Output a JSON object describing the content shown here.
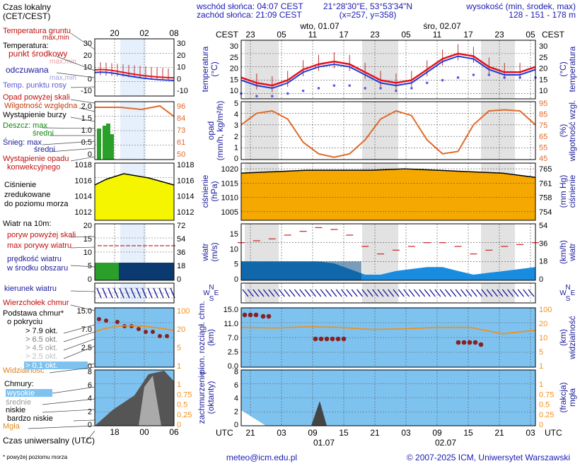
{
  "header": {
    "sunrise": "wschód słońca: 04:07 CEST",
    "sunset": "zachód słońca: 21:09 CEST",
    "coords": "21°28'30\"E, 53°53'34\"N",
    "grid": "(x=257, y=358)",
    "height_label": "wysokość (min, środek, max)",
    "height_values": "128 - 151 - 178 m"
  },
  "footer": {
    "email": "meteo@icm.edu.pl",
    "copyright": "© 2007-2025 ICM, Uniwersytet Warszawski",
    "note": "* powyżej poziomu morza"
  },
  "legend": {
    "tz": "Czas lokalny",
    "tz2": "(CET/CEST)",
    "ground_temp": "Temperatura gruntu",
    "maxmin": "max,min",
    "temperature": "Temperatura:",
    "mid_point": "punkt środkowy",
    "max_min": "max,min",
    "perceived": "odczuwana",
    "max_min2": "max,min",
    "dew": "Temp. punktu rosy",
    "precip_above": "Opad powyżej skali",
    "rh": "Wilgotność względna",
    "storm": "Wystąpienie burzy",
    "rain_max": "Deszcz: max",
    "rain_mid": "średni",
    "snow_max": "Śnieg:   max",
    "snow_mid": "średni",
    "conv": "Wystąpienie opadu",
    "conv2": "konwekcyjnego",
    "pressure1": "Ciśnienie",
    "pressure2": "zredukowane",
    "pressure3": "do poziomu morza",
    "wind_title": "Wiatr na 10m:",
    "gust_above": "poryw powyżej skali",
    "gust_max": "max porywy wiatru",
    "wind_speed1": "prędkość wiatru",
    "wind_speed2": "w środku obszaru",
    "wind_dir": "kierunek wiatru",
    "cloud_top": "Wierzchołek chmur",
    "cloud_base1": "Podstawa chmur*",
    "cloud_base2": "o pokryciu",
    "okt79": "> 7.9 okt.",
    "okt65": "> 6.5 okt.",
    "okt45": "> 4.5 okt.",
    "okt25": "> 2.5 okt.",
    "okt01": "> 0.1 okt.",
    "visibility": "Widzialność",
    "clouds": "Chmury:",
    "high": "wysokie",
    "mid": "średnie",
    "low": "niskie",
    "vlow": "bardzo niskie",
    "fog": "Mgła",
    "utc": "Czas uniwersalny (UTC)"
  },
  "main": {
    "cest": "CEST",
    "utc": "UTC",
    "day1": "wto, 01.07",
    "day2": "śro, 02.07",
    "date1": "01.07",
    "date2": "02.07",
    "top_hours": [
      "23",
      "05",
      "11",
      "17",
      "23",
      "05",
      "11",
      "17",
      "23",
      "05"
    ],
    "bottom_hours": [
      "21",
      "03",
      "09",
      "15",
      "21",
      "03",
      "09",
      "15",
      "21",
      "03"
    ],
    "left_hours_top": [
      "20",
      "02",
      "08"
    ],
    "left_hours_bottom": [
      "18",
      "00",
      "06"
    ],
    "panel_labels": {
      "temp": [
        "temperatura",
        "(°C)"
      ],
      "precip": [
        "opad",
        "(mm/h, kg/m²/h)"
      ],
      "pressure": [
        "ciśnienie",
        "(hPa)"
      ],
      "wind": [
        "wiatr",
        "(m/s)"
      ],
      "cloudbase": [
        "pion. rozciągł. chm.",
        "(km)"
      ],
      "cover": [
        "zachmurzenie",
        "(oktanty)"
      ],
      "temp_r": [
        "(°C)",
        "temperatura"
      ],
      "rh_r": [
        "(%)",
        "wilgotność wzgl."
      ],
      "pres_r": [
        "(mm Hg)",
        "ciśnienie"
      ],
      "wind_r": [
        "(km/h)",
        "wiatr"
      ],
      "vis_r": [
        "(km)",
        "widzialność"
      ],
      "fog_r": [
        "(frakcja)",
        "mgła"
      ]
    },
    "compass_n": "N",
    "compass_w": "W",
    "compass_e": "E",
    "compass_s": "S"
  },
  "axes": {
    "temp_left": [
      "30",
      "25",
      "20",
      "15",
      "10"
    ],
    "temp_right": [
      "30",
      "25",
      "20",
      "15",
      "10"
    ],
    "precip_left": [
      "5",
      "4",
      "3",
      "2",
      "1",
      "0"
    ],
    "rh_right": [
      "95",
      "85",
      "75",
      "65",
      "55",
      "45"
    ],
    "pres_left": [
      "1020",
      "1015",
      "1010",
      "1005"
    ],
    "pres_right": [
      "765",
      "761",
      "758",
      "754"
    ],
    "wind_left": [
      "15",
      "10",
      "5",
      "0"
    ],
    "wind_right": [
      "54",
      "36",
      "18",
      "0"
    ],
    "cb_left": [
      "15.0",
      "11.0",
      "7.0",
      "2.5",
      "0.0"
    ],
    "vis_right": [
      "100",
      "20",
      "10",
      "5",
      "1"
    ],
    "cover_left": [
      "8",
      "6",
      "4",
      "2",
      "0"
    ],
    "fog_right": [
      "1",
      "0.75",
      "0.5",
      "0.25",
      "0"
    ],
    "sm_temp_left": [
      "30",
      "20",
      "10",
      "0",
      "-10"
    ],
    "sm_temp_right": [
      "30",
      "20",
      "10",
      "0",
      "-10"
    ],
    "sm_prec_left": [
      "2.0",
      "1.5",
      "1.0",
      "0.5",
      "0"
    ],
    "sm_rh_right": [
      "96",
      "84",
      "73",
      "61",
      "50"
    ],
    "sm_pres_left": [
      "1018",
      "1016",
      "1014",
      "1012"
    ],
    "sm_pres_right": [
      "1018",
      "1016",
      "1014",
      "1012"
    ],
    "sm_wind_left": [
      "20",
      "15",
      "10",
      "5",
      "0"
    ],
    "sm_wind_right": [
      "72",
      "54",
      "36",
      "18",
      "0"
    ],
    "sm_cb_left": [
      "15.0",
      "7.0",
      "2.5",
      "0.0"
    ],
    "sm_vis_right": [
      "100",
      "20",
      "5",
      "1"
    ],
    "sm_cov_left": [
      "8",
      "6",
      "4",
      "2",
      "0"
    ],
    "sm_fog_right": [
      "1",
      "0.75",
      "0.5",
      "0.25",
      "0"
    ]
  },
  "colors": {
    "temp": "#e8101a",
    "perceived": "#1a3bd6",
    "dew": "#5a5ae0",
    "rh": "#e06a2a",
    "pressure_fill": "#f5a800",
    "pressure_fill_light": "#ffd000",
    "wind_fill": "#1a8ce0",
    "gust": "#cc2222",
    "vis": "#f09020",
    "sky": "#7ec3f0",
    "night": "#e2e2e2"
  },
  "chart_data": [
    {
      "type": "line",
      "title": "temperatura (°C)",
      "x": [
        "23",
        "02",
        "05",
        "08",
        "11",
        "14",
        "17",
        "20",
        "23",
        "02",
        "05",
        "08",
        "11",
        "14",
        "17",
        "20",
        "23",
        "02",
        "05",
        "08"
      ],
      "series": [
        {
          "name": "temperatura punkt środkowy",
          "values": [
            16,
            14,
            13,
            15,
            19,
            21,
            22,
            21,
            18,
            15,
            14,
            15,
            19,
            23,
            25,
            24,
            20,
            18,
            18,
            20
          ]
        },
        {
          "name": "odczuwana",
          "values": [
            15,
            13,
            12,
            14,
            18,
            20,
            21,
            20,
            17,
            14,
            13,
            14,
            18,
            22,
            24,
            23,
            19,
            17,
            17,
            19
          ]
        },
        {
          "name": "temp. punktu rosy",
          "values": [
            10,
            9,
            9,
            10,
            11,
            12,
            13,
            13,
            12,
            12,
            11,
            12,
            14,
            15,
            16,
            17,
            17,
            16,
            16,
            16
          ]
        }
      ],
      "ylim": [
        8,
        30
      ]
    },
    {
      "type": "line",
      "title": "wilgotność względna (%)",
      "x": [
        "23",
        "02",
        "05",
        "08",
        "11",
        "14",
        "17",
        "20",
        "23",
        "02",
        "05",
        "08",
        "11",
        "14",
        "17",
        "20",
        "23",
        "02",
        "05",
        "08"
      ],
      "series": [
        {
          "name": "wilgotność względna",
          "values": [
            75,
            85,
            87,
            80,
            60,
            50,
            47,
            50,
            62,
            80,
            87,
            83,
            62,
            50,
            52,
            75,
            87,
            88,
            87,
            75
          ]
        }
      ],
      "ylim": [
        45,
        95
      ]
    },
    {
      "type": "area",
      "title": "ciśnienie (hPa)",
      "x": [
        "23",
        "05",
        "11",
        "17",
        "23",
        "05",
        "11",
        "17",
        "23",
        "05"
      ],
      "series": [
        {
          "name": "ciśnienie",
          "values": [
            1018.5,
            1019,
            1019.5,
            1019.5,
            1019.5,
            1020,
            1019.5,
            1019,
            1018.5,
            1017
          ]
        }
      ],
      "ylim": [
        1002,
        1022
      ]
    },
    {
      "type": "area",
      "title": "wiatr (m/s)",
      "x": [
        "23",
        "02",
        "05",
        "08",
        "11",
        "14",
        "17",
        "20",
        "23",
        "02",
        "05",
        "08",
        "11",
        "14",
        "17",
        "20",
        "23",
        "02",
        "05",
        "08"
      ],
      "series": [
        {
          "name": "prędkość wiatru",
          "values": [
            5,
            5,
            5,
            5,
            5,
            5,
            4.5,
            3,
            1.5,
            1.5,
            2.5,
            3,
            3.5,
            3.5,
            2.5,
            1.5,
            2,
            2.5,
            3,
            3.5
          ]
        },
        {
          "name": "max porywy wiatru",
          "values": [
            10,
            10.5,
            11,
            12,
            13,
            14,
            13.5,
            12,
            9,
            7,
            8,
            9,
            10,
            10,
            9,
            7,
            8,
            9,
            9.5,
            10
          ]
        }
      ],
      "ylim": [
        0,
        18
      ]
    },
    {
      "type": "line",
      "title": "widzialność (km)",
      "x": [
        "23",
        "05",
        "11",
        "17",
        "23",
        "05",
        "11",
        "17",
        "23",
        "05"
      ],
      "series": [
        {
          "name": "widzialność",
          "values": [
            30,
            28,
            32,
            30,
            24,
            26,
            30,
            30,
            15,
            22
          ]
        }
      ],
      "ylim": [
        1,
        100
      ]
    },
    {
      "type": "area",
      "title": "zachmurzenie (oktanty)",
      "x": [
        "23",
        "05",
        "11",
        "17",
        "23",
        "05",
        "11",
        "17",
        "23",
        "05"
      ],
      "series": [
        {
          "name": "chmury niskie",
          "values": [
            1.5,
            0,
            0,
            2,
            0,
            0,
            0,
            0,
            0,
            0
          ]
        }
      ],
      "ylim": [
        0,
        8
      ]
    }
  ]
}
